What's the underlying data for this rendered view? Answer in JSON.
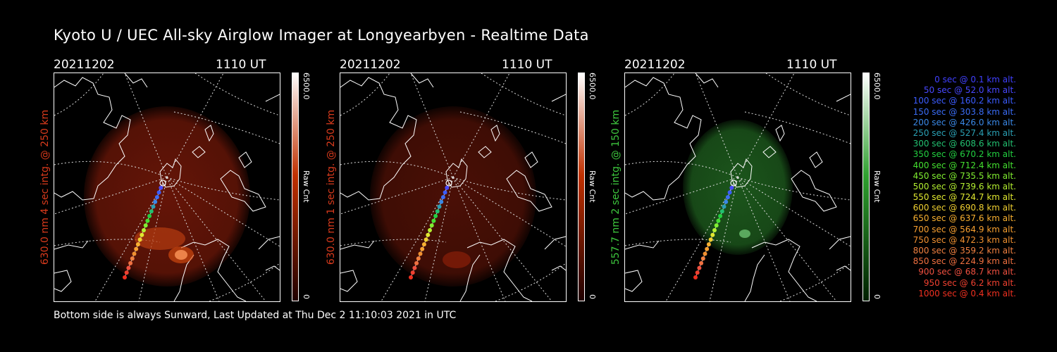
{
  "header": {
    "title": "Kyoto U / UEC All-sky Airglow Imager at Longyearbyen - Realtime Data"
  },
  "footer": {
    "text": "Bottom side is always Sunward, Last Updated at Thu Dec  2 11:10:03 2021 in UTC"
  },
  "panels": [
    {
      "date": "20211202",
      "time": "1110 UT",
      "side_label": "630.0 nm 4 sec intg. @ 250 km",
      "colorbar_max": "6500.0",
      "colorbar_unit": "Raw Cnt",
      "colorbar_min": "0",
      "color_top": "#ffffff",
      "color_mid": "#c03000",
      "color_bottom": "#200000",
      "label_color": "#d83a1c",
      "glow_color": "#6a1608"
    },
    {
      "date": "20211202",
      "time": "1110 UT",
      "side_label": "630.0 nm 1 sec intg. @ 250 km",
      "colorbar_max": "6500.0",
      "colorbar_unit": "Raw Cnt",
      "colorbar_min": "0",
      "color_top": "#ffffff",
      "color_mid": "#c03000",
      "color_bottom": "#200000",
      "label_color": "#d83a1c",
      "glow_color": "#4e1006"
    },
    {
      "date": "20211202",
      "time": "1110 UT",
      "side_label": "557.7 nm 2 sec intg. @ 150 km",
      "colorbar_max": "6500.0",
      "colorbar_unit": "Raw Cnt",
      "colorbar_min": "0",
      "color_top": "#ffffff",
      "color_mid": "#30a030",
      "color_bottom": "#002000",
      "label_color": "#3ec83e",
      "glow_color": "#1d5a1d"
    }
  ],
  "legend": [
    {
      "text": "0 sec @    0.1 km alt.",
      "color": "#4040ff"
    },
    {
      "text": "50 sec @   52.0 km alt.",
      "color": "#4848ff"
    },
    {
      "text": "100 sec @  160.2 km alt.",
      "color": "#3b5cff"
    },
    {
      "text": "150 sec @  303.8 km alt.",
      "color": "#3a6cf5"
    },
    {
      "text": "200 sec @  426.0 km alt.",
      "color": "#3a88e6"
    },
    {
      "text": "250 sec @  527.4 km alt.",
      "color": "#2aa0b4"
    },
    {
      "text": "300 sec @  608.6 km alt.",
      "color": "#22c070"
    },
    {
      "text": "350 sec @  670.2 km alt.",
      "color": "#22d040"
    },
    {
      "text": "400 sec @  712.4 km alt.",
      "color": "#44e030"
    },
    {
      "text": "450 sec @  735.5 km alt.",
      "color": "#80ee30"
    },
    {
      "text": "500 sec @  739.6 km alt.",
      "color": "#b4f030"
    },
    {
      "text": "550 sec @  724.7 km alt.",
      "color": "#e0e830"
    },
    {
      "text": "600 sec @  690.8 km alt.",
      "color": "#f0d030"
    },
    {
      "text": "650 sec @  637.6 km alt.",
      "color": "#f8b030"
    },
    {
      "text": "700 sec @  564.9 km alt.",
      "color": "#f8a030"
    },
    {
      "text": "750 sec @  472.3 km alt.",
      "color": "#f09030"
    },
    {
      "text": "800 sec @  359.2 km alt.",
      "color": "#f08040"
    },
    {
      "text": "850 sec @  224.9 km alt.",
      "color": "#f07040"
    },
    {
      "text": "900 sec @   68.7 km alt.",
      "color": "#f05040"
    },
    {
      "text": "950 sec @    6.2 km alt.",
      "color": "#f04030"
    },
    {
      "text": "1000 sec @    0.4 km alt.",
      "color": "#f03020"
    }
  ]
}
